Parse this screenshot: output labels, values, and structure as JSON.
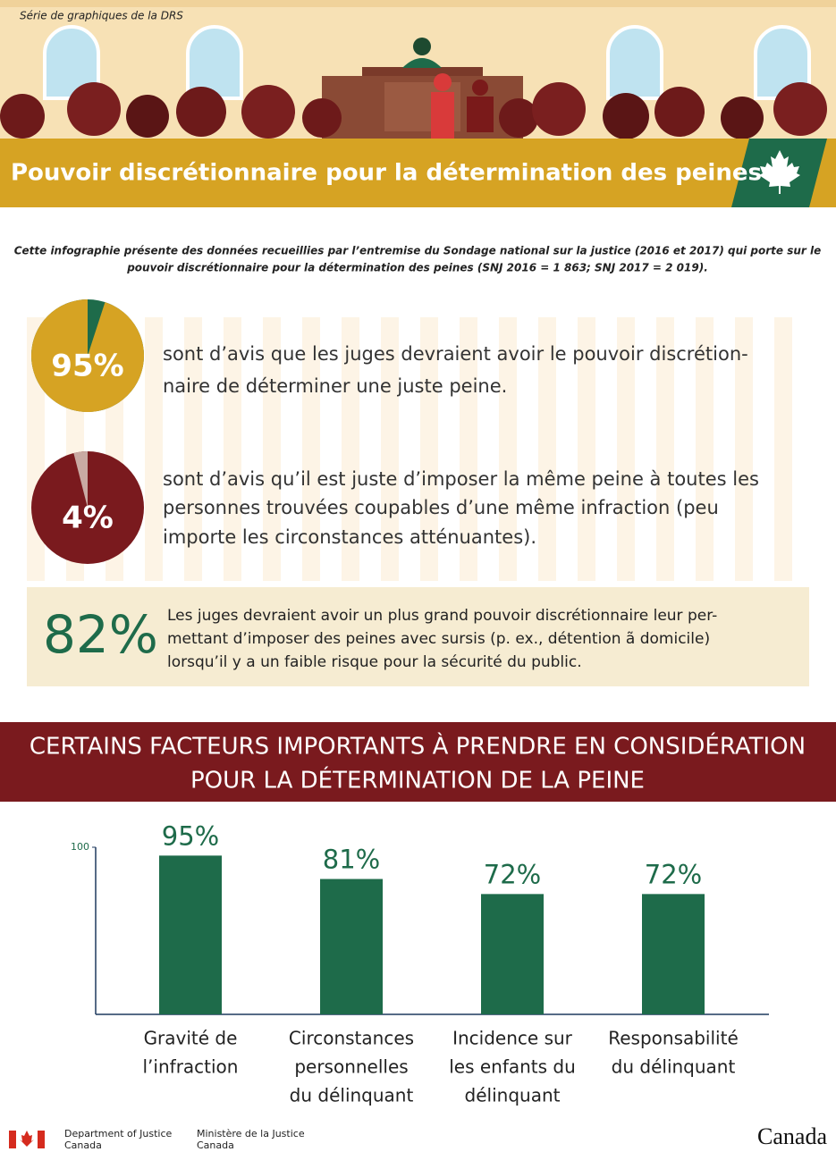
{
  "series_label": "Série de graphiques de la DRS",
  "title": "Pouvoir discrétionnaire pour la détermination des peines",
  "intro": [
    "Cette infographie présente des données recueillies par l’entremise du Sondage national sur la justice (2016 et 2017) qui porte sur le",
    "pouvoir discrétionnaire pour la détermination des peines (SNJ 2016 = 1 863; SNJ 2017 = 2 019)."
  ],
  "pies": [
    {
      "value": 95,
      "label": "95%",
      "text": [
        "sont d’avis que les juges devraient avoir le pouvoir discrétion-",
        "naire de déterminer une juste peine."
      ]
    },
    {
      "value": 4,
      "label": "4%",
      "text": [
        "sont d’avis qu’il est juste d’imposer la même peine à toutes les",
        "personnes trouvées coupables d’une même infraction (peu",
        "importe les circonstances atténuantes)."
      ]
    }
  ],
  "highlight": {
    "label": "82%",
    "text": [
      "Les juges devraient avoir un plus grand pouvoir discrétionnaire leur per-",
      "mettant d’imposer des peines avec sursis (p. ex., détention ã domicile)",
      "lorsqu’il y a un faible risque pour la sécurité du public."
    ]
  },
  "section_title": [
    "CERTAINS FACTEURS IMPORTANTS À PRENDRE EN CONSIDÉRATION",
    "POUR LA DÉTERMINATION DE LA PEINE"
  ],
  "chart_data": {
    "type": "bar",
    "categories": [
      [
        "Gravité de",
        "l’infraction"
      ],
      [
        "Circonstances",
        "personnelles",
        "du délinquant"
      ],
      [
        "Incidence sur",
        "les enfants du",
        "délinquant"
      ],
      [
        "Responsabilité",
        "du délinquant"
      ]
    ],
    "values": [
      95,
      81,
      72,
      72
    ],
    "value_labels": [
      "95%",
      "81%",
      "72%",
      "72%"
    ],
    "color": "#1e6b4a",
    "ylim": [
      0,
      100
    ],
    "yticks": [
      100
    ]
  },
  "footer": {
    "dept_en": [
      "Department of Justice",
      "Canada"
    ],
    "dept_fr": [
      "Ministère de la Justice",
      "Canada"
    ],
    "wordmark": "Canada"
  }
}
